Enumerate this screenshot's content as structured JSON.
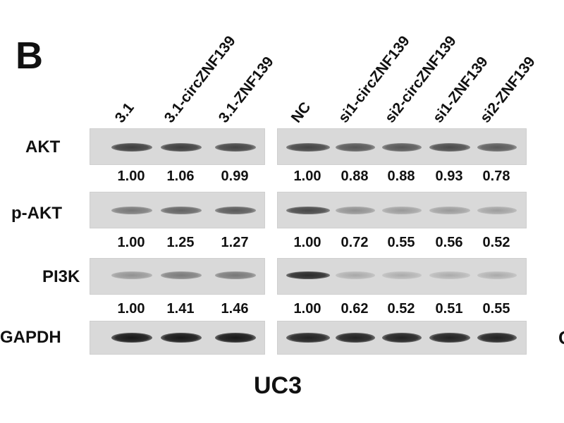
{
  "panel_label": "B",
  "cell_line": "UC3",
  "edge_mark": "C",
  "lanes": [
    "3.1",
    "3.1-circZNF139",
    "3.1-ZNF139",
    "NC",
    "si1-circZNF139",
    "si2-circZNF139",
    "si1-ZNF139",
    "si2-ZNF139"
  ],
  "rows": [
    {
      "label": "AKT",
      "quant": [
        "1.00",
        "1.06",
        "0.99",
        "1.00",
        "0.88",
        "0.88",
        "0.93",
        "0.78"
      ],
      "band_intensity": [
        0.75,
        0.75,
        0.72,
        0.72,
        0.62,
        0.62,
        0.68,
        0.6
      ]
    },
    {
      "label": "p-AKT",
      "quant": [
        "1.00",
        "1.25",
        "1.27",
        "1.00",
        "0.72",
        "0.55",
        "0.56",
        "0.52"
      ],
      "band_intensity": [
        0.45,
        0.55,
        0.6,
        0.7,
        0.32,
        0.26,
        0.26,
        0.24
      ]
    },
    {
      "label": "PI3K",
      "quant": [
        "1.00",
        "1.41",
        "1.46",
        "1.00",
        "0.62",
        "0.52",
        "0.51",
        "0.55"
      ],
      "band_intensity": [
        0.3,
        0.42,
        0.44,
        0.85,
        0.18,
        0.16,
        0.16,
        0.17
      ]
    },
    {
      "label": "GAPDH",
      "quant": null,
      "band_intensity": [
        0.95,
        0.95,
        0.95,
        0.9,
        0.9,
        0.9,
        0.9,
        0.9
      ]
    }
  ]
}
